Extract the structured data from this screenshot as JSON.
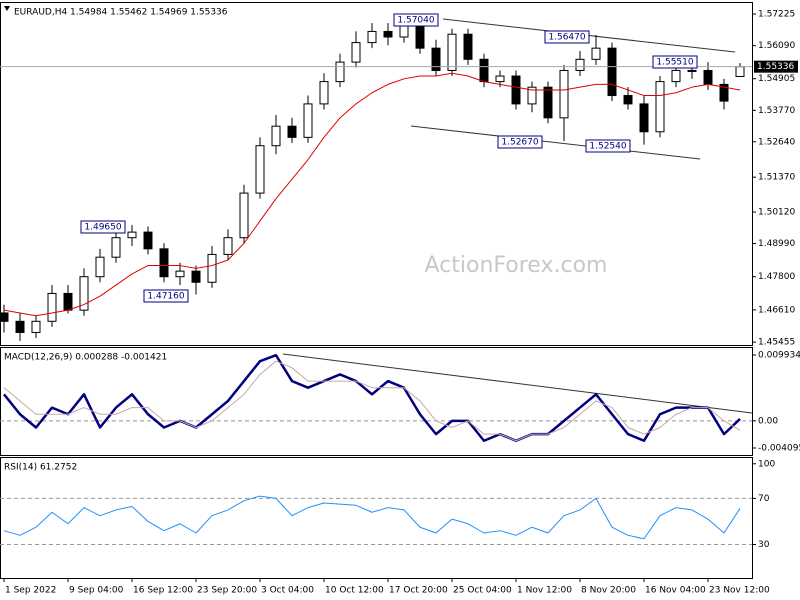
{
  "chart_data": [
    {
      "type": "candlestick",
      "title": "EURAUD,H4 1.54984 1.55462 1.54969 1.55336",
      "watermark": "ActionForex.com",
      "categories": [
        "1 Sep 2022",
        null,
        null,
        null,
        "9 Sep 04:00",
        null,
        null,
        null,
        "16 Sep 12:00",
        null,
        null,
        null,
        "23 Sep 20:00",
        null,
        null,
        null,
        "3 Oct 04:00",
        null,
        null,
        null,
        "10 Oct 12:00",
        null,
        null,
        null,
        "17 Oct 20:00",
        null,
        null,
        null,
        "25 Oct 04:00",
        null,
        null,
        null,
        "1 Nov 12:00",
        null,
        null,
        null,
        "8 Nov 20:00",
        null,
        null,
        null,
        "16 Nov 04:00",
        null,
        null,
        null,
        "23 Nov 12:00",
        null,
        null
      ],
      "open": [
        1.465,
        1.462,
        1.458,
        1.462,
        1.472,
        1.466,
        1.478,
        1.485,
        1.492,
        1.494,
        1.488,
        1.478,
        1.48,
        1.476,
        1.486,
        1.492,
        1.508,
        1.525,
        1.532,
        1.528,
        1.54,
        1.548,
        1.555,
        1.562,
        1.566,
        1.564,
        1.568,
        1.56,
        1.552,
        1.565,
        1.556,
        1.548,
        1.55,
        1.54,
        1.546,
        1.535,
        1.552,
        1.556,
        1.56,
        1.543,
        1.54,
        1.53,
        1.548,
        1.552,
        1.552,
        1.547,
        1.54984
      ],
      "high": [
        1.468,
        1.465,
        1.464,
        1.475,
        1.475,
        1.481,
        1.488,
        1.4965,
        1.4965,
        1.496,
        1.49,
        1.483,
        1.482,
        1.489,
        1.495,
        1.511,
        1.528,
        1.536,
        1.535,
        1.543,
        1.551,
        1.558,
        1.566,
        1.569,
        1.569,
        1.5704,
        1.57,
        1.563,
        1.567,
        1.567,
        1.558,
        1.552,
        1.552,
        1.548,
        1.548,
        1.554,
        1.559,
        1.5647,
        1.562,
        1.546,
        1.543,
        1.55,
        1.554,
        1.5551,
        1.555,
        1.549,
        1.55462
      ],
      "low": [
        1.458,
        1.455,
        1.456,
        1.46,
        1.4648,
        1.464,
        1.476,
        1.483,
        1.489,
        1.486,
        1.476,
        1.475,
        1.4716,
        1.474,
        1.484,
        1.49,
        1.506,
        1.522,
        1.526,
        1.526,
        1.538,
        1.546,
        1.553,
        1.56,
        1.561,
        1.562,
        1.558,
        1.55,
        1.55,
        1.554,
        1.546,
        1.546,
        1.538,
        1.537,
        1.533,
        1.5267,
        1.55,
        1.554,
        1.541,
        1.538,
        1.5254,
        1.528,
        1.546,
        1.549,
        1.545,
        1.538,
        1.54969
      ],
      "close": [
        1.462,
        1.458,
        1.462,
        1.472,
        1.466,
        1.478,
        1.485,
        1.492,
        1.494,
        1.488,
        1.478,
        1.48,
        1.476,
        1.486,
        1.492,
        1.508,
        1.525,
        1.532,
        1.528,
        1.54,
        1.548,
        1.555,
        1.562,
        1.566,
        1.564,
        1.568,
        1.56,
        1.552,
        1.565,
        1.556,
        1.548,
        1.55,
        1.54,
        1.546,
        1.535,
        1.552,
        1.556,
        1.56,
        1.543,
        1.54,
        1.53,
        1.548,
        1.552,
        1.552,
        1.547,
        1.541,
        1.55336
      ],
      "series": [
        {
          "name": "MA",
          "color": "#e00000",
          "values": [
            1.466,
            1.465,
            1.464,
            1.465,
            1.466,
            1.468,
            1.471,
            1.475,
            1.479,
            1.482,
            1.482,
            1.482,
            1.481,
            1.482,
            1.484,
            1.49,
            1.498,
            1.506,
            1.513,
            1.52,
            1.528,
            1.535,
            1.54,
            1.544,
            1.547,
            1.549,
            1.55,
            1.55,
            1.551,
            1.55,
            1.548,
            1.547,
            1.546,
            1.545,
            1.545,
            1.545,
            1.546,
            1.547,
            1.547,
            1.545,
            1.543,
            1.543,
            1.544,
            1.546,
            1.547,
            1.546,
            1.545
          ]
        }
      ],
      "last": 1.55336,
      "annotations": [
        "1.57040",
        "1.56470",
        "1.55510",
        "1.52670",
        "1.52540",
        "1.49650",
        "1.47160"
      ],
      "ylim": [
        1.4535,
        1.5762
      ],
      "yticks": [
        1.57225,
        {
          "value": 1.5609,
          "label": "1.56090"
        },
        1.54905,
        {
          "value": 1.5377,
          "label": "1.53770"
        },
        {
          "value": 1.5264,
          "label": "1.52640"
        },
        {
          "value": 1.5137,
          "label": "1.51370"
        },
        {
          "value": 1.5012,
          "label": "1.50120"
        },
        {
          "value": 1.4899,
          "label": "1.48990"
        },
        {
          "value": 1.478,
          "label": "1.47800"
        },
        {
          "value": 1.4661,
          "label": "1.46610"
        },
        1.45455
      ]
    },
    {
      "type": "line",
      "title": "MACD(12,26,9) 0.000288 -0.001421",
      "series": [
        {
          "name": "MACD",
          "color": "#000080",
          "width": 2.5,
          "values": [
            0.004,
            0.001,
            -0.001,
            0.002,
            0.001,
            0.004,
            -0.001,
            0.002,
            0.004,
            0.001,
            -0.001,
            0.0,
            -0.001,
            0.001,
            0.003,
            0.006,
            0.009,
            0.0099,
            0.006,
            0.005,
            0.006,
            0.007,
            0.006,
            0.004,
            0.006,
            0.005,
            0.001,
            -0.002,
            0.0,
            0.0,
            -0.003,
            -0.002,
            -0.003,
            -0.002,
            -0.002,
            0.0,
            0.002,
            0.004,
            0.001,
            -0.002,
            -0.003,
            0.001,
            0.002,
            0.002,
            0.002,
            -0.002,
            0.000288
          ]
        },
        {
          "name": "Signal",
          "color": "#c8a8a8",
          "width": 1,
          "values": [
            0.005,
            0.003,
            0.001,
            0.001,
            0.001,
            0.002,
            0.001,
            0.001,
            0.002,
            0.002,
            0.0,
            0.0,
            -0.001,
            0.0,
            0.002,
            0.004,
            0.007,
            0.009,
            0.008,
            0.006,
            0.006,
            0.006,
            0.006,
            0.005,
            0.005,
            0.005,
            0.003,
            0.0,
            -0.001,
            0.0,
            -0.002,
            -0.002,
            -0.003,
            -0.002,
            -0.002,
            -0.001,
            0.001,
            0.003,
            0.002,
            -0.001,
            -0.002,
            -0.001,
            0.001,
            0.002,
            0.002,
            0.0,
            -0.001421
          ]
        }
      ],
      "ylim": [
        -0.00515,
        0.01099
      ],
      "yticks": [
        0.009934,
        {
          "value": 0,
          "label": "0.00"
        },
        -0.004095
      ],
      "dashed": [
        1
      ]
    },
    {
      "type": "line",
      "title": "RSI(14) 61.2752",
      "series": [
        {
          "name": "RSI",
          "color": "#1e90ff",
          "width": 1,
          "values": [
            42,
            38,
            45,
            58,
            48,
            62,
            55,
            60,
            63,
            50,
            42,
            48,
            40,
            55,
            60,
            68,
            72,
            70,
            55,
            62,
            66,
            65,
            64,
            58,
            62,
            60,
            45,
            40,
            52,
            48,
            40,
            42,
            38,
            45,
            40,
            55,
            60,
            70,
            45,
            38,
            35,
            55,
            62,
            60,
            52,
            40,
            61.2752
          ]
        }
      ],
      "ylim": [
        1,
        105
      ],
      "yticks": [
        100,
        70,
        30
      ],
      "dashed": [
        1,
        2
      ]
    }
  ]
}
